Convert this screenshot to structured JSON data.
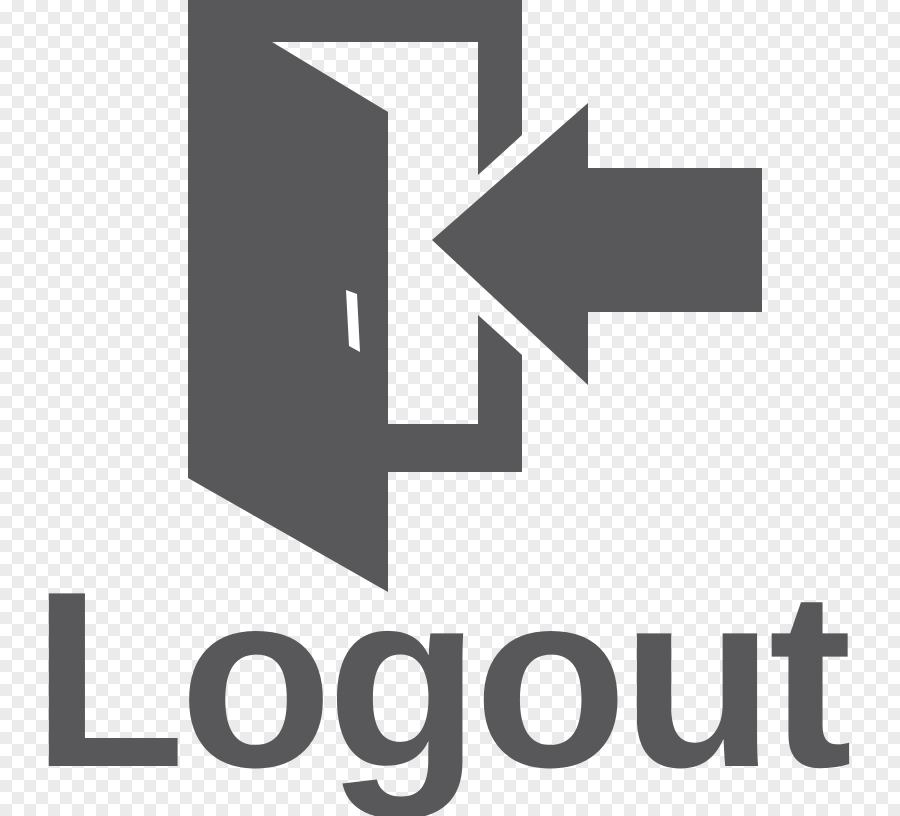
{
  "logo": {
    "icon_name": "logout-door-arrow-icon",
    "label": "Logout",
    "color": "#58585a"
  }
}
